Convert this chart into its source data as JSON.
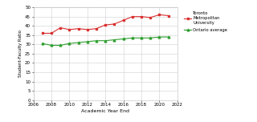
{
  "tmu_years": [
    2007,
    2008,
    2009,
    2010,
    2011,
    2012,
    2013,
    2014,
    2015,
    2016,
    2017,
    2018,
    2019,
    2020,
    2021
  ],
  "tmu_values": [
    36,
    36,
    39,
    38,
    38.5,
    38,
    38.5,
    40.5,
    41,
    43,
    45,
    45,
    44.5,
    46,
    45.5
  ],
  "ont_years": [
    2007,
    2008,
    2009,
    2010,
    2011,
    2012,
    2013,
    2014,
    2015,
    2016,
    2017,
    2018,
    2019,
    2020,
    2021
  ],
  "ont_values": [
    30.5,
    29.5,
    29.5,
    30.5,
    31,
    31.5,
    32,
    32,
    32.5,
    33,
    33.5,
    33.5,
    33.5,
    34,
    34
  ],
  "tmu_color": "#d93030",
  "ont_color": "#2e9e2e",
  "xlabel": "Academic Year End",
  "ylabel": "Student-Faculty Ratio",
  "xlim": [
    2006,
    2022
  ],
  "ylim": [
    0,
    50
  ],
  "yticks": [
    0,
    5,
    10,
    15,
    20,
    25,
    30,
    35,
    40,
    45,
    50
  ],
  "xticks": [
    2006,
    2008,
    2010,
    2012,
    2014,
    2016,
    2018,
    2020,
    2022
  ],
  "legend_tmu": "Toronto\nMetropolitan\nUniversity",
  "legend_ont": "Ontario average",
  "background_color": "#ffffff",
  "grid_color": "#d0d0d0"
}
